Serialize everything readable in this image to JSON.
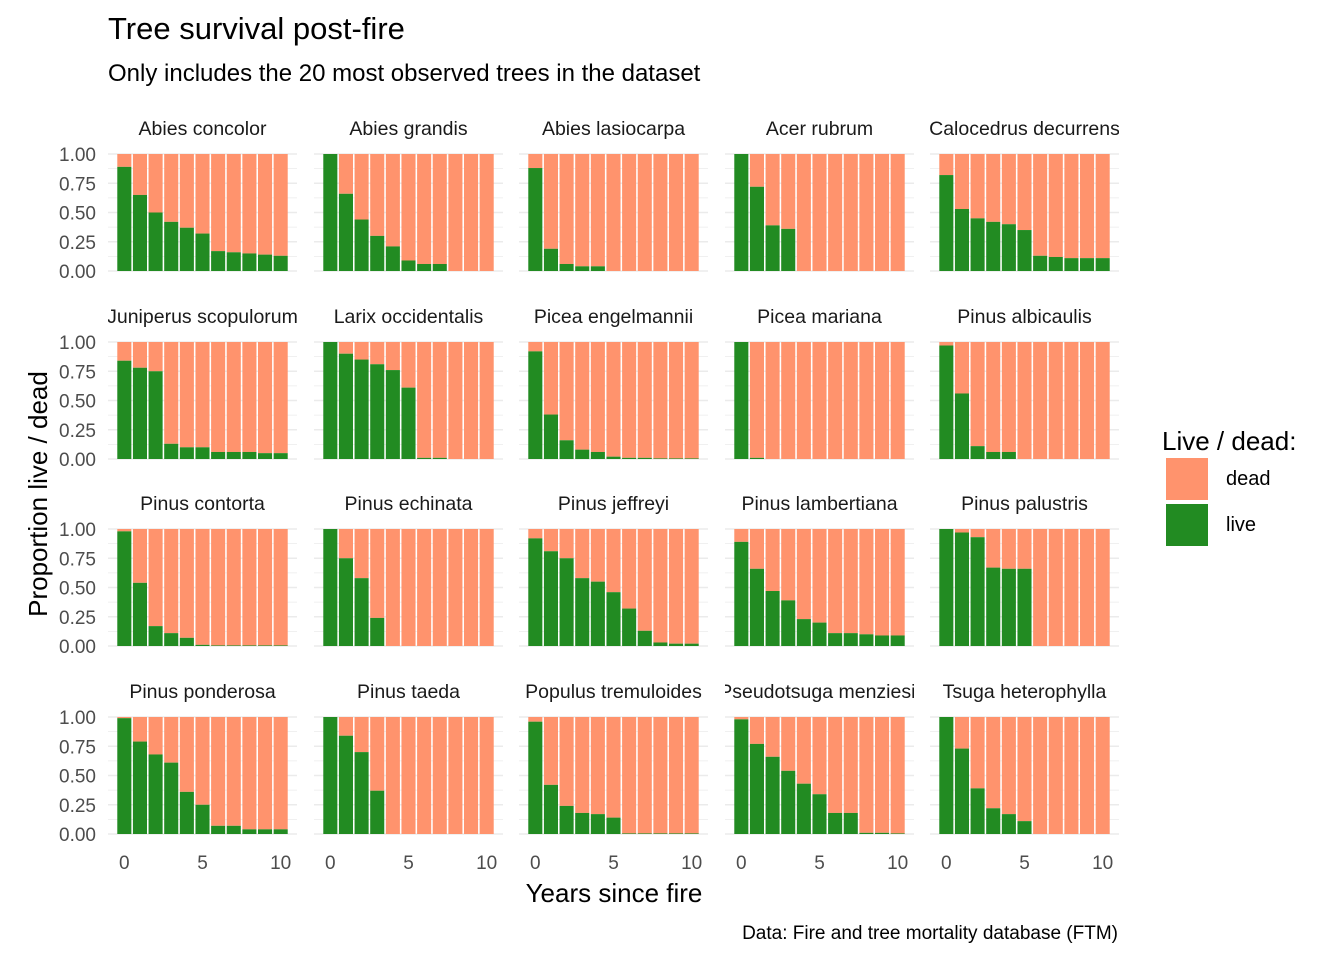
{
  "title": "Tree survival post-fire",
  "subtitle": "Only includes the 20 most observed trees in the dataset",
  "caption": "Data: Fire and tree mortality database (FTM)",
  "colors": {
    "live": "#228B22",
    "dead": "#FF936D",
    "grid": "#EBEBEB"
  },
  "chart_data": {
    "type": "bar",
    "stacked": true,
    "facets_layout": "4 rows x 5 columns",
    "xlabel": "Years since fire",
    "ylabel": "Proportion live / dead",
    "xlim": [
      0,
      10
    ],
    "ylim": [
      0,
      1
    ],
    "x_ticks": [
      "0",
      "5",
      "10"
    ],
    "y_ticks": [
      "0.00",
      "0.25",
      "0.50",
      "0.75",
      "1.00"
    ],
    "years": [
      0,
      1,
      2,
      3,
      4,
      5,
      6,
      7,
      8,
      9,
      10
    ],
    "legend": {
      "title": "Live / dead:",
      "position": "right",
      "items": [
        "dead",
        "live"
      ]
    },
    "facets": [
      {
        "name": "Abies concolor",
        "live": [
          0.89,
          0.65,
          0.5,
          0.42,
          0.37,
          0.32,
          0.17,
          0.16,
          0.15,
          0.14,
          0.13
        ]
      },
      {
        "name": "Abies grandis",
        "live": [
          1.0,
          0.66,
          0.44,
          0.3,
          0.21,
          0.09,
          0.06,
          0.06,
          0,
          0,
          0
        ]
      },
      {
        "name": "Abies lasiocarpa",
        "live": [
          0.88,
          0.19,
          0.06,
          0.04,
          0.04,
          0,
          0,
          0,
          0,
          0,
          0
        ]
      },
      {
        "name": "Acer rubrum",
        "live": [
          1.0,
          0.72,
          0.39,
          0.36,
          0,
          0,
          0,
          0,
          0,
          0,
          0
        ]
      },
      {
        "name": "Calocedrus decurrens",
        "live": [
          0.82,
          0.53,
          0.45,
          0.42,
          0.4,
          0.35,
          0.13,
          0.12,
          0.11,
          0.11,
          0.11
        ]
      },
      {
        "name": "Juniperus scopulorum",
        "live": [
          0.84,
          0.78,
          0.75,
          0.13,
          0.1,
          0.1,
          0.06,
          0.06,
          0.06,
          0.05,
          0.05
        ]
      },
      {
        "name": "Larix occidentalis",
        "live": [
          1.0,
          0.9,
          0.85,
          0.81,
          0.76,
          0.61,
          0.01,
          0.01,
          0,
          0,
          0
        ]
      },
      {
        "name": "Picea engelmannii",
        "live": [
          0.92,
          0.38,
          0.16,
          0.08,
          0.06,
          0.02,
          0.01,
          0.01,
          0.005,
          0.005,
          0.005
        ]
      },
      {
        "name": "Picea mariana",
        "live": [
          1.0,
          0.01,
          0,
          0,
          0,
          0,
          0,
          0,
          0,
          0,
          0
        ]
      },
      {
        "name": "Pinus albicaulis",
        "live": [
          0.97,
          0.56,
          0.11,
          0.06,
          0.06,
          0,
          0,
          0,
          0,
          0,
          0
        ]
      },
      {
        "name": "Pinus contorta",
        "live": [
          0.98,
          0.54,
          0.17,
          0.11,
          0.07,
          0.01,
          0.005,
          0.005,
          0.005,
          0.005,
          0.005
        ]
      },
      {
        "name": "Pinus echinata",
        "live": [
          1.0,
          0.75,
          0.58,
          0.24,
          0,
          0,
          0,
          0,
          0,
          0,
          0
        ]
      },
      {
        "name": "Pinus jeffreyi",
        "live": [
          0.92,
          0.81,
          0.75,
          0.58,
          0.55,
          0.46,
          0.32,
          0.13,
          0.03,
          0.02,
          0.02
        ]
      },
      {
        "name": "Pinus lambertiana",
        "live": [
          0.89,
          0.66,
          0.47,
          0.39,
          0.23,
          0.2,
          0.11,
          0.11,
          0.1,
          0.09,
          0.09
        ]
      },
      {
        "name": "Pinus palustris",
        "live": [
          1.0,
          0.97,
          0.93,
          0.67,
          0.66,
          0.66,
          0,
          0,
          0,
          0,
          0
        ]
      },
      {
        "name": "Pinus ponderosa",
        "live": [
          0.99,
          0.79,
          0.68,
          0.61,
          0.36,
          0.25,
          0.07,
          0.07,
          0.04,
          0.04,
          0.04
        ]
      },
      {
        "name": "Pinus taeda",
        "live": [
          1.0,
          0.84,
          0.7,
          0.37,
          0,
          0,
          0,
          0,
          0,
          0,
          0
        ]
      },
      {
        "name": "Populus tremuloides",
        "live": [
          0.96,
          0.42,
          0.24,
          0.18,
          0.17,
          0.14,
          0.005,
          0.005,
          0.005,
          0.005,
          0.005
        ]
      },
      {
        "name": "Pseudotsuga menziesii",
        "live": [
          0.98,
          0.77,
          0.66,
          0.54,
          0.43,
          0.34,
          0.18,
          0.18,
          0.01,
          0.01,
          0.005
        ]
      },
      {
        "name": "Tsuga heterophylla",
        "live": [
          1.0,
          0.73,
          0.39,
          0.22,
          0.17,
          0.11,
          0,
          0,
          0,
          0,
          0
        ]
      }
    ]
  }
}
